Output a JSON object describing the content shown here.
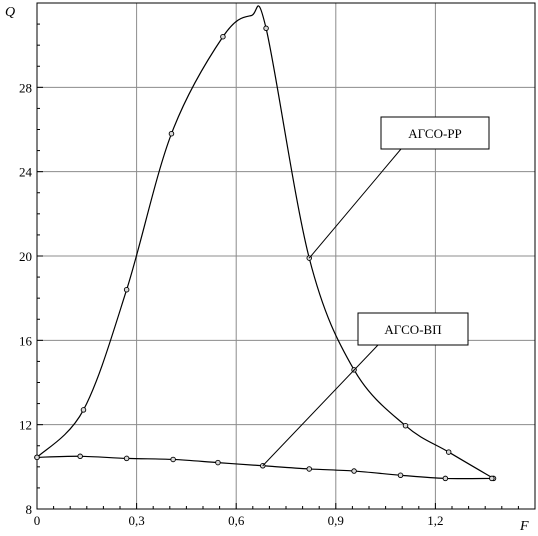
{
  "chart_data": {
    "type": "line",
    "xlabel": "F",
    "ylabel": "Q",
    "xlim": [
      0,
      1.5
    ],
    "ylim": [
      8,
      32
    ],
    "grid": true,
    "x_ticks": [
      {
        "value": 0,
        "label": "0"
      },
      {
        "value": 0.3,
        "label": "0,3"
      },
      {
        "value": 0.6,
        "label": "0,6"
      },
      {
        "value": 0.9,
        "label": "0,9"
      },
      {
        "value": 1.2,
        "label": "1,2"
      }
    ],
    "y_ticks": [
      {
        "value": 8,
        "label": "8"
      },
      {
        "value": 12,
        "label": "12"
      },
      {
        "value": 16,
        "label": "16"
      },
      {
        "value": 20,
        "label": "20"
      },
      {
        "value": 24,
        "label": "24"
      },
      {
        "value": 28,
        "label": "28"
      }
    ],
    "series": [
      {
        "name": "АГСО-РР",
        "points": [
          {
            "x": 0.0,
            "y": 10.45
          },
          {
            "x": 0.14,
            "y": 12.7
          },
          {
            "x": 0.27,
            "y": 18.4
          },
          {
            "x": 0.405,
            "y": 25.8
          },
          {
            "x": 0.56,
            "y": 30.4
          },
          {
            "x": 0.69,
            "y": 30.8
          },
          {
            "x": 0.82,
            "y": 19.9
          },
          {
            "x": 0.955,
            "y": 14.6
          },
          {
            "x": 1.11,
            "y": 11.95
          },
          {
            "x": 1.24,
            "y": 10.7
          },
          {
            "x": 1.375,
            "y": 9.45
          }
        ],
        "peak": {
          "x": 0.645,
          "y": 31.4
        }
      },
      {
        "name": "АГСО-ВП",
        "points": [
          {
            "x": 0.0,
            "y": 10.45
          },
          {
            "x": 0.13,
            "y": 10.5
          },
          {
            "x": 0.27,
            "y": 10.4
          },
          {
            "x": 0.41,
            "y": 10.35
          },
          {
            "x": 0.545,
            "y": 10.2
          },
          {
            "x": 0.68,
            "y": 10.05
          },
          {
            "x": 0.82,
            "y": 9.9
          },
          {
            "x": 0.955,
            "y": 9.8
          },
          {
            "x": 1.095,
            "y": 9.6
          },
          {
            "x": 1.23,
            "y": 9.45
          },
          {
            "x": 1.37,
            "y": 9.45
          }
        ]
      }
    ],
    "annotations": [
      {
        "text": "АГСО-РР",
        "series": 0,
        "point": 6
      },
      {
        "text": "АГСО-ВП",
        "series": 1,
        "point": 5
      }
    ]
  }
}
